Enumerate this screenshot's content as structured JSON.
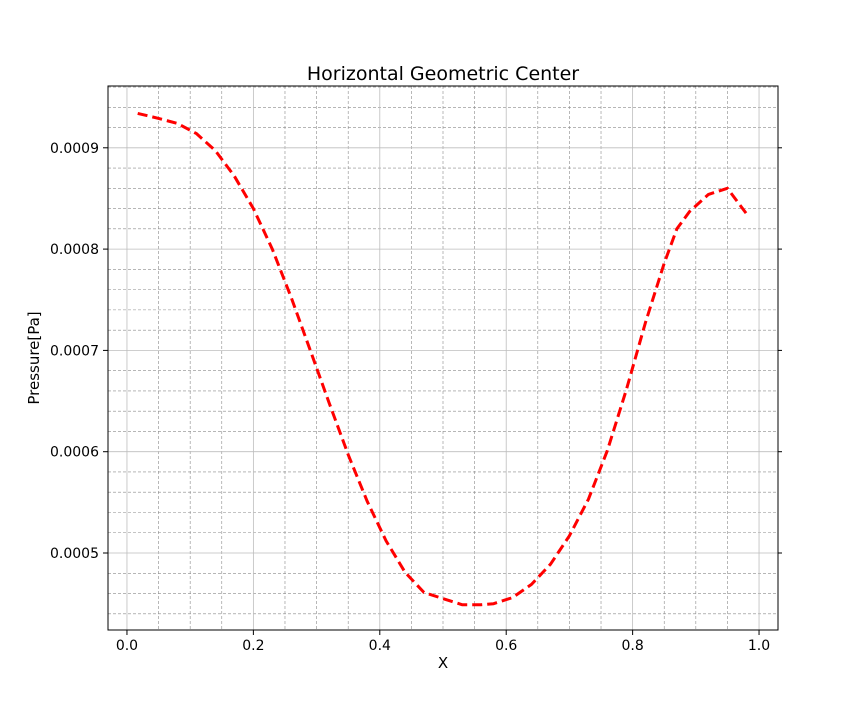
{
  "chart_data": {
    "type": "line",
    "title": "Horizontal Geometric Center",
    "xlabel": "X",
    "ylabel": "Pressure[Pa]",
    "xlim": [
      -0.03,
      1.03
    ],
    "ylim": [
      0.000424,
      0.000961
    ],
    "x_ticks": [
      0.0,
      0.2,
      0.4,
      0.6,
      0.8,
      1.0
    ],
    "x_tick_labels": [
      "0.0",
      "0.2",
      "0.4",
      "0.6",
      "0.8",
      "1.0"
    ],
    "y_ticks": [
      0.0005,
      0.0006,
      0.0007,
      0.0008,
      0.0009
    ],
    "y_tick_labels": [
      "0.0005",
      "0.0006",
      "0.0007",
      "0.0008",
      "0.0009"
    ],
    "grid": true,
    "series": [
      {
        "color": "#ff0000",
        "linestyle": "dashed",
        "x": [
          0.017,
          0.05,
          0.08,
          0.11,
          0.14,
          0.17,
          0.2,
          0.23,
          0.26,
          0.29,
          0.32,
          0.35,
          0.38,
          0.41,
          0.44,
          0.47,
          0.5,
          0.53,
          0.56,
          0.58,
          0.61,
          0.64,
          0.67,
          0.7,
          0.73,
          0.76,
          0.79,
          0.82,
          0.85,
          0.87,
          0.89,
          0.92,
          0.95,
          0.98
        ],
        "y": [
          0.000934,
          0.000929,
          0.000924,
          0.000914,
          0.000897,
          0.000872,
          0.00084,
          0.0008,
          0.000752,
          0.0007,
          0.000648,
          0.000597,
          0.000551,
          0.000512,
          0.000481,
          0.000461,
          0.000455,
          0.000449,
          0.000449,
          0.00045,
          0.000456,
          0.000469,
          0.000489,
          0.000517,
          0.000553,
          0.000601,
          0.000661,
          0.000727,
          0.000786,
          0.00082,
          0.000837,
          0.000854,
          0.00086,
          0.000835
        ]
      }
    ]
  }
}
